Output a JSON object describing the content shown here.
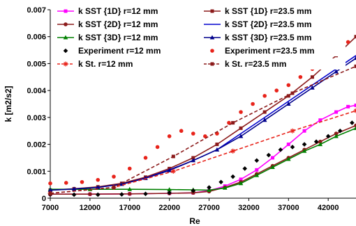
{
  "chart_data": {
    "type": "line",
    "xlabel": "Re",
    "ylabel": "k [m2/s2]",
    "xlim": [
      7000,
      45500
    ],
    "ylim": [
      0,
      0.007
    ],
    "xticks": [
      "7000",
      "12000",
      "17000",
      "22000",
      "27000",
      "32000",
      "37000",
      "42000"
    ],
    "yticks": [
      "0",
      "0.001",
      "0.002",
      "0.003",
      "0.004",
      "0.005",
      "0.006",
      "0.007"
    ],
    "grid": false,
    "legend_position": "top",
    "series": [
      {
        "name": "k SST {1D} r=12 mm",
        "color": "#ff00ff",
        "marker": "square",
        "dash": "solid",
        "x": [
          7000,
          12000,
          17000,
          22000,
          25000,
          27000,
          29000,
          31000,
          33000,
          35000,
          37000,
          39000,
          41000,
          43000,
          44500,
          45500
        ],
        "y": [
          0.00015,
          0.00015,
          0.00016,
          0.00018,
          0.0002,
          0.00028,
          0.00045,
          0.0007,
          0.00105,
          0.0015,
          0.002,
          0.0025,
          0.0029,
          0.0032,
          0.0034,
          0.00345
        ]
      },
      {
        "name": "k SST {1D} r=23.5 mm",
        "color": "#8b1a1a",
        "marker": "square",
        "dash": "solid",
        "x": [
          7000,
          10000,
          13000,
          16000,
          19000,
          22000,
          25000,
          28000,
          31000,
          34000,
          37000,
          40000,
          43000,
          45500
        ],
        "y": [
          0.0003,
          0.00035,
          0.00042,
          0.00055,
          0.00078,
          0.0011,
          0.0015,
          0.002,
          0.0026,
          0.0032,
          0.0038,
          0.0045,
          0.0053,
          0.006
        ]
      },
      {
        "name": "k SST {2D} r=12 mm",
        "color": "#8b1a1a",
        "marker": "circle",
        "dash": "solid",
        "x": [
          7000,
          12000,
          17000,
          22000,
          25000,
          27000,
          29000,
          31000,
          33000,
          35000,
          37000,
          39000,
          41000,
          43000,
          45500
        ],
        "y": [
          0.00015,
          0.00015,
          0.00016,
          0.00018,
          0.0002,
          0.00025,
          0.0004,
          0.0006,
          0.0009,
          0.0012,
          0.0015,
          0.0018,
          0.0021,
          0.0024,
          0.0027
        ]
      },
      {
        "name": "k SST {2D} r=23.5 mm",
        "color": "#0000cd",
        "marker": "none",
        "dash": "solid",
        "x": [
          7000,
          10000,
          13000,
          16000,
          19000,
          22000,
          25000,
          28000,
          31000,
          34000,
          37000,
          40000,
          43000,
          45500
        ],
        "y": [
          0.0003,
          0.00034,
          0.0004,
          0.00052,
          0.00075,
          0.00105,
          0.0014,
          0.0018,
          0.0024,
          0.003,
          0.0036,
          0.0042,
          0.0048,
          0.0053
        ]
      },
      {
        "name": "k SST {3D} r=12 mm",
        "color": "#008000",
        "marker": "triangle",
        "dash": "solid",
        "x": [
          7000,
          12000,
          17000,
          22000,
          25000,
          27000,
          29000,
          31000,
          33000,
          35000,
          37000,
          39000,
          41000,
          43000,
          45500
        ],
        "y": [
          0.00033,
          0.00033,
          0.00033,
          0.00032,
          0.00031,
          0.0003,
          0.00038,
          0.00055,
          0.00085,
          0.00115,
          0.00145,
          0.00175,
          0.002,
          0.0023,
          0.0026
        ]
      },
      {
        "name": "k SST {3D} r=23.5 mm",
        "color": "#00008b",
        "marker": "triangle",
        "dash": "solid",
        "x": [
          7000,
          10000,
          13000,
          16000,
          19000,
          22000,
          25000,
          28000,
          31000,
          34000,
          37000,
          40000,
          43000,
          45500
        ],
        "y": [
          0.0003,
          0.00034,
          0.0004,
          0.00052,
          0.00074,
          0.00103,
          0.0014,
          0.0018,
          0.0023,
          0.0029,
          0.0035,
          0.0041,
          0.0047,
          0.0052
        ]
      },
      {
        "name": "Experiment r=12 mm",
        "color": "#000000",
        "marker": "diamond",
        "dash": "none",
        "x": [
          7000,
          10000,
          13000,
          16000,
          19000,
          22000,
          25000,
          27000,
          28500,
          30000,
          31500,
          33000,
          34500,
          36000,
          37500,
          39000,
          40500,
          42000,
          43500,
          45000
        ],
        "y": [
          0.00013,
          0.00013,
          0.00013,
          0.00014,
          0.00016,
          0.0002,
          0.00028,
          0.0004,
          0.0006,
          0.0008,
          0.0011,
          0.0014,
          0.0016,
          0.0018,
          0.0019,
          0.002,
          0.0021,
          0.0023,
          0.0025,
          0.0028
        ]
      },
      {
        "name": "Experiment r=23.5 mm",
        "color": "#e8231a",
        "marker": "circle",
        "dash": "none",
        "x": [
          7000,
          9000,
          11000,
          13000,
          15000,
          17000,
          19000,
          20500,
          22000,
          23500,
          25000,
          26500,
          28000,
          29500,
          31000,
          32500,
          34000,
          35500,
          37000,
          38500,
          40000,
          41500,
          43000,
          44500
        ],
        "y": [
          0.00055,
          0.00057,
          0.0006,
          0.00068,
          0.0008,
          0.0011,
          0.0015,
          0.0019,
          0.0023,
          0.0025,
          0.0024,
          0.0023,
          0.0024,
          0.0028,
          0.0032,
          0.0035,
          0.0038,
          0.004,
          0.0042,
          0.0045,
          0.0048,
          0.0051,
          0.0055,
          0.0058
        ]
      },
      {
        "name": "k St. r=12 mm",
        "color": "#e8231a",
        "marker": "asterisk",
        "dash": "dashed",
        "x": [
          7000,
          15000,
          22500,
          30000,
          37500,
          45500
        ],
        "y": [
          0.00018,
          0.0004,
          0.001,
          0.00175,
          0.0025,
          0.00325
        ]
      },
      {
        "name": "k St. r=23.5 mm",
        "color": "#8b1a1a",
        "marker": "square",
        "dash": "dashed",
        "x": [
          7000,
          15000,
          22500,
          30000,
          37500,
          45500
        ],
        "y": [
          0.00018,
          0.0004,
          0.00155,
          0.0028,
          0.0039,
          0.0049
        ]
      }
    ]
  }
}
